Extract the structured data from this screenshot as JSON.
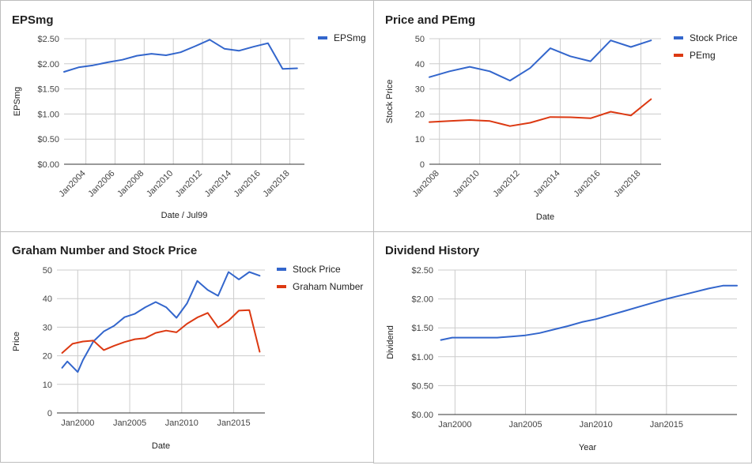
{
  "chart_data": [
    {
      "type": "line",
      "title": "EPSmg",
      "xlabel": "Date / Jul99",
      "ylabel": "EPSmg",
      "grid": true,
      "legend": "right",
      "ylim": [
        0,
        2.5
      ],
      "yticks": [
        "$0.00",
        "$0.50",
        "$1.00",
        "$1.50",
        "$2.00",
        "$2.50"
      ],
      "xlim": [
        2002.5,
        2019
      ],
      "xticks": [
        {
          "v": 2004,
          "label": "Jan2004"
        },
        {
          "v": 2006,
          "label": "Jan2006"
        },
        {
          "v": 2008,
          "label": "Jan2008"
        },
        {
          "v": 2010,
          "label": "Jan2010"
        },
        {
          "v": 2012,
          "label": "Jan2012"
        },
        {
          "v": 2014,
          "label": "Jan2014"
        },
        {
          "v": 2016,
          "label": "Jan2016"
        },
        {
          "v": 2018,
          "label": "Jan2018"
        }
      ],
      "series": [
        {
          "name": "EPSmg",
          "color": "#3366cc",
          "x": [
            2002.5,
            2003.5,
            2004.5,
            2005.5,
            2006.5,
            2007.5,
            2008.5,
            2009.5,
            2010.5,
            2011.5,
            2012.5,
            2013.5,
            2014.5,
            2015.5,
            2016.5,
            2017.5,
            2018.5
          ],
          "y": [
            1.84,
            1.93,
            1.97,
            2.03,
            2.08,
            2.16,
            2.2,
            2.17,
            2.23,
            2.35,
            2.48,
            2.3,
            2.26,
            2.34,
            2.41,
            1.9,
            1.91
          ]
        }
      ]
    },
    {
      "type": "line",
      "title": "Price and PEmg",
      "xlabel": "Date",
      "ylabel": "Stock Price",
      "grid": true,
      "legend": "right",
      "ylim": [
        0,
        50
      ],
      "yticks": [
        "0",
        "10",
        "20",
        "30",
        "40",
        "50"
      ],
      "xlim": [
        2007.5,
        2019
      ],
      "xticks": [
        {
          "v": 2008,
          "label": "Jan2008"
        },
        {
          "v": 2010,
          "label": "Jan2010"
        },
        {
          "v": 2012,
          "label": "Jan2012"
        },
        {
          "v": 2014,
          "label": "Jan2014"
        },
        {
          "v": 2016,
          "label": "Jan2016"
        },
        {
          "v": 2018,
          "label": "Jan2018"
        }
      ],
      "series": [
        {
          "name": "Stock Price",
          "color": "#3366cc",
          "x": [
            2007.5,
            2008.5,
            2009.5,
            2010.5,
            2011.5,
            2012.5,
            2013.5,
            2014.5,
            2015.5,
            2016.5,
            2017.5,
            2018.5
          ],
          "y": [
            34.7,
            37,
            38.8,
            37,
            33.3,
            38.3,
            46.2,
            43,
            41,
            49.3,
            46.7,
            49.3
          ]
        },
        {
          "name": "PEmg",
          "color": "#dc3912",
          "x": [
            2007.5,
            2008.5,
            2009.5,
            2010.5,
            2011.5,
            2012.5,
            2013.5,
            2014.5,
            2015.5,
            2016.5,
            2017.5,
            2018.5
          ],
          "y": [
            16.8,
            17.2,
            17.6,
            17.2,
            15.2,
            16.5,
            18.8,
            18.7,
            18.3,
            20.9,
            19.4,
            25.9
          ]
        }
      ]
    },
    {
      "type": "line",
      "title": "Graham Number and Stock Price",
      "xlabel": "Date",
      "ylabel": "Price",
      "grid": true,
      "legend": "right",
      "ylim": [
        0,
        50
      ],
      "yticks": [
        "0",
        "10",
        "20",
        "30",
        "40",
        "50"
      ],
      "xlim": [
        1998,
        2018
      ],
      "xticks": [
        {
          "v": 2000,
          "label": "Jan2000"
        },
        {
          "v": 2005,
          "label": "Jan2005"
        },
        {
          "v": 2010,
          "label": "Jan2010"
        },
        {
          "v": 2015,
          "label": "Jan2015"
        }
      ],
      "series": [
        {
          "name": "Stock Price",
          "color": "#3366cc",
          "x": [
            1998.5,
            1999,
            2000,
            2000.5,
            2001.5,
            2002.5,
            2003.5,
            2004.5,
            2005.5,
            2006.5,
            2007.5,
            2008.5,
            2009.5,
            2010.5,
            2011.5,
            2012.5,
            2013.5,
            2014.5,
            2015.5,
            2016.5,
            2017.5
          ],
          "y": [
            15.8,
            18,
            14.3,
            18.5,
            25,
            28.5,
            30.5,
            33.5,
            34.7,
            37,
            38.8,
            37,
            33.3,
            38.3,
            46.2,
            43,
            41,
            49.3,
            46.7,
            49.3,
            48
          ]
        },
        {
          "name": "Graham Number",
          "color": "#dc3912",
          "x": [
            1998.5,
            1999.5,
            2000.5,
            2001.5,
            2002.5,
            2003.5,
            2004.5,
            2005.5,
            2006.5,
            2007.5,
            2008.5,
            2009.5,
            2010.5,
            2011.5,
            2012.5,
            2013.5,
            2014.5,
            2015.5,
            2016.5,
            2017.5
          ],
          "y": [
            21,
            24.2,
            25,
            25.3,
            22,
            23.5,
            24.8,
            25.8,
            26.2,
            28,
            28.8,
            28.2,
            31.2,
            33.4,
            35,
            29.9,
            32.3,
            35.8,
            36,
            21.4
          ]
        }
      ]
    },
    {
      "type": "line",
      "title": "Dividend History",
      "xlabel": "Year",
      "ylabel": "Dividend",
      "grid": true,
      "ylim": [
        0,
        2.5
      ],
      "yticks": [
        "$0.00",
        "$0.50",
        "$1.00",
        "$1.50",
        "$2.00",
        "$2.50"
      ],
      "xlim": [
        1998.8,
        2020
      ],
      "xticks": [
        {
          "v": 2000,
          "label": "Jan2000"
        },
        {
          "v": 2005,
          "label": "Jan2005"
        },
        {
          "v": 2010,
          "label": "Jan2010"
        },
        {
          "v": 2015,
          "label": "Jan2015"
        }
      ],
      "series": [
        {
          "name": "Dividend",
          "color": "#3366cc",
          "x": [
            1999,
            1999.8,
            2001,
            2002,
            2003,
            2004,
            2005,
            2006,
            2007,
            2008,
            2009,
            2010,
            2011,
            2012,
            2013,
            2014,
            2015,
            2016,
            2017,
            2018,
            2019,
            2020
          ],
          "y": [
            1.29,
            1.33,
            1.33,
            1.33,
            1.33,
            1.35,
            1.37,
            1.41,
            1.47,
            1.53,
            1.6,
            1.65,
            1.72,
            1.79,
            1.86,
            1.93,
            2.0,
            2.06,
            2.12,
            2.18,
            2.23,
            2.23
          ]
        }
      ]
    }
  ]
}
